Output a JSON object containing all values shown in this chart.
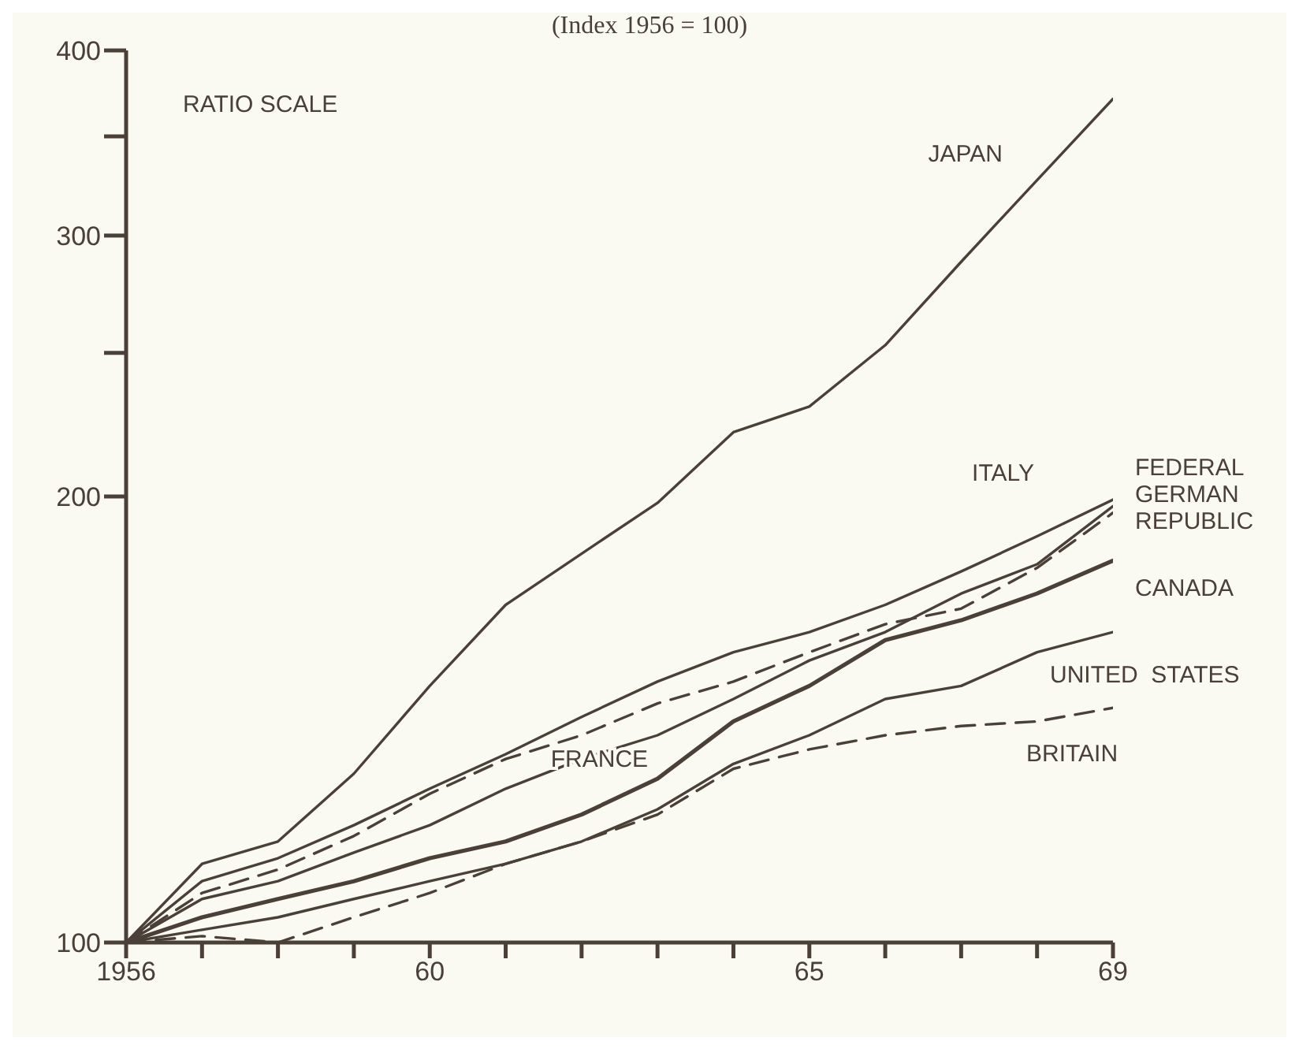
{
  "chart_data": {
    "type": "line",
    "subtitle": "(Index  1956 = 100)",
    "annotations": [
      "RATIO SCALE"
    ],
    "x": [
      1956,
      1957,
      1958,
      1959,
      1960,
      1961,
      1962,
      1963,
      1964,
      1965,
      1966,
      1967,
      1968,
      1969
    ],
    "xlim": [
      1956,
      1969
    ],
    "xticks": [
      {
        "value": 1956,
        "label": "1956"
      },
      {
        "value": 1957,
        "label": null
      },
      {
        "value": 1958,
        "label": null
      },
      {
        "value": 1959,
        "label": null
      },
      {
        "value": 1960,
        "label": "60"
      },
      {
        "value": 1961,
        "label": null
      },
      {
        "value": 1962,
        "label": null
      },
      {
        "value": 1963,
        "label": null
      },
      {
        "value": 1964,
        "label": null
      },
      {
        "value": 1965,
        "label": "65"
      },
      {
        "value": 1966,
        "label": null
      },
      {
        "value": 1967,
        "label": null
      },
      {
        "value": 1968,
        "label": null
      },
      {
        "value": 1969,
        "label": "69"
      }
    ],
    "ylim": [
      100,
      400
    ],
    "yticks": [
      100,
      200,
      {
        "value": 250,
        "label": null
      },
      300,
      {
        "value": 350,
        "label": null
      },
      400
    ],
    "log": true,
    "series": [
      {
        "name": "JAPAN",
        "color": "#4a4038",
        "line_style": "solid",
        "values": [
          100,
          113,
          117,
          130,
          149,
          169,
          183,
          198,
          221,
          230,
          253,
          288,
          327,
          371
        ]
      },
      {
        "name": "ITALY",
        "color": "#4a4038",
        "line_style": "solid",
        "values": [
          100,
          110,
          114,
          120,
          127,
          134,
          142,
          150,
          157,
          162,
          169,
          178,
          188,
          199
        ]
      },
      {
        "name": "FRANCE",
        "color": "#4a4038",
        "line_style": "solid",
        "values": [
          100,
          107,
          110,
          115,
          120,
          127,
          133,
          138,
          146,
          155,
          162,
          172,
          180,
          197
        ]
      },
      {
        "name": "FEDERAL GERMAN REPUBLIC",
        "color": "#4a4038",
        "line_style": "dashed",
        "values": [
          100,
          108,
          112,
          118,
          126,
          133,
          138,
          145,
          150,
          157,
          164,
          168,
          179,
          195
        ]
      },
      {
        "name": "CANADA",
        "color": "#4a4038",
        "line_style": "solid",
        "values": [
          100,
          104,
          107,
          110,
          114,
          117,
          122,
          129,
          141,
          149,
          160,
          165,
          172,
          181
        ]
      },
      {
        "name": "UNITED  STATES",
        "color": "#4a4038",
        "line_style": "solid",
        "values": [
          100,
          102,
          104,
          107,
          110,
          113,
          117,
          123,
          132,
          138,
          146,
          149,
          157,
          162
        ]
      },
      {
        "name": "BRITAIN",
        "color": "#4a4038",
        "line_style": "dashed",
        "values": [
          100,
          101,
          100,
          104,
          108,
          113,
          117,
          122,
          131,
          135,
          138,
          140,
          141,
          144
        ]
      }
    ]
  }
}
